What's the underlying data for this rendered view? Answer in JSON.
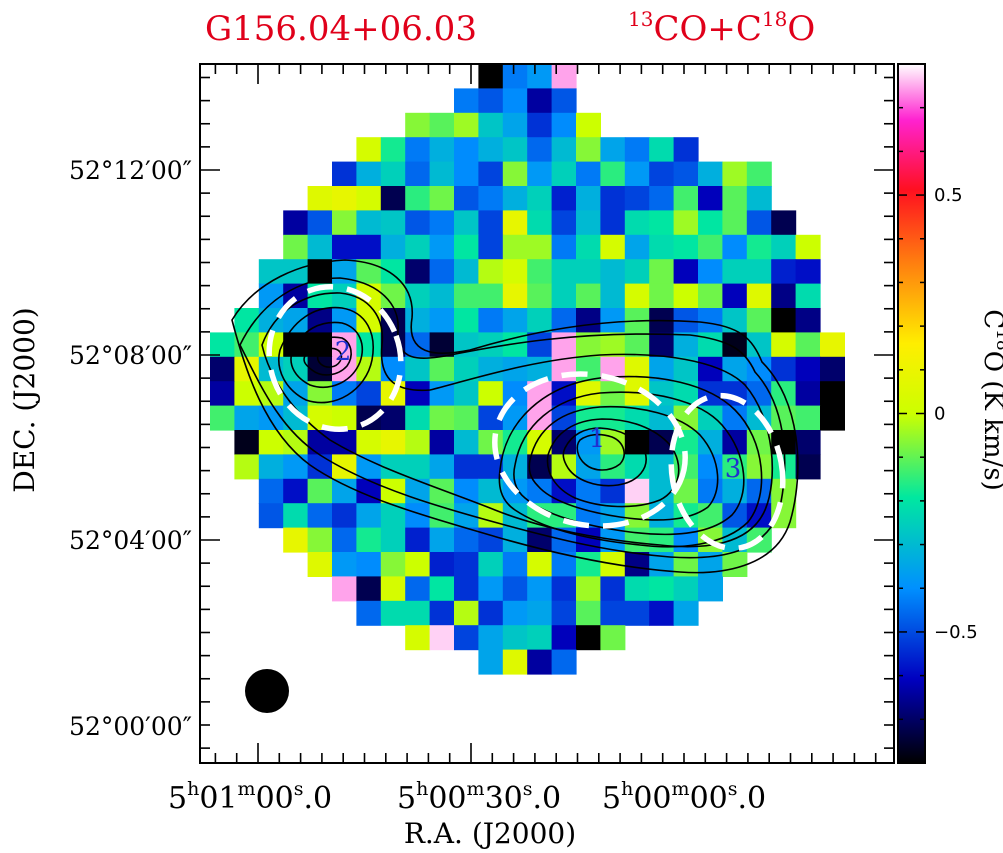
{
  "chart_data": {
    "type": "heatmap",
    "title": "G156.04+06.03",
    "subtitle": {
      "pre": "13",
      "a": "CO+C",
      "sup": "18",
      "b": "O"
    },
    "xlabel": "R.A. (J2000)",
    "ylabel": "DEC. (J2000)",
    "colorbar_label": {
      "c": "C",
      "sup": "18",
      "rest": "O (K km/s)"
    },
    "colorbar_range": [
      -0.8,
      0.8
    ],
    "colorbar_ticks": [
      {
        "v": 0.5,
        "label": "0.5"
      },
      {
        "v": 0,
        "label": "0"
      },
      {
        "v": -0.5,
        "label": "−0.5"
      }
    ],
    "x_ticks": [
      {
        "h": "5",
        "m": "01",
        "s": "00",
        "frac": ".0"
      },
      {
        "h": "5",
        "m": "00",
        "s": "30",
        "frac": ".0"
      },
      {
        "h": "5",
        "m": "00",
        "s": "00",
        "frac": ".0"
      }
    ],
    "y_ticks": [
      "52°12′00″",
      "52°08′00″",
      "52°04′00″",
      "52°00′00″"
    ],
    "clump_labels": [
      "1",
      "2",
      "3"
    ],
    "beam": "filled circle, bottom-left",
    "pixel_grid": [
      "...........-EG+..........",
      "..........ECF6C..........",
      "........TRUKHAFW.........",
      "......XOEIFIKDJTHEMA......",
      ".....AILDJFBTGLEPGBCIUQ...",
      "....YZX3PSCEIL9IABDQ7RJ...",
      "...6CTJKCEKBZMBJAMNUNRC3..",
      "...SJ88ILGNBUUEMXHMNQFOLW.",
      "..KK0HRN4DJVXQLLJLS7FLL98.",
      "..G6NLXSLJQQZRLRJXSWS7Y5M.",
      ".NIH5GX3IGNEHLD5GR3CEKR-5.",
      "NQW00+N3D2KLNB+TUR4IM1KXRZ",
      "4ZJL2+VFKRLIHI+Q+YHK7HFA74",
      "6WVHTEBZ7GKWF+8YSYKMAADP6-",
      "QHGJXW34MSRBG+BOOMJTLEJRQ-",
      ".1WV66XZV6JSOX4GU-3OI6S-4.",
      ".VIGAZGLLHAAI3VHPMJQFPTO3.",
      "..D8RH7WHRFJGE8EA/JSEIDT..",
      "..CMDAHLFQHVJPPEHTIOQC8T..",
      "...ZTDOL9HDBI4D7GQPFTJQ...",
      "....YGFTW9ALEXEOX5HSHS....",
      ".....+3XDNAGCGAUAMNLH.....",
      "......DMMAVAGHBRBB8H......",
      "........X/BHKL7-S.........",
      "...........HY6D..........."
    ],
    "pixel_scale": "character code c maps to value ((index of c in 0-9A-Za-z+/) - 32) / 40 K km/s; '.' means no data"
  }
}
